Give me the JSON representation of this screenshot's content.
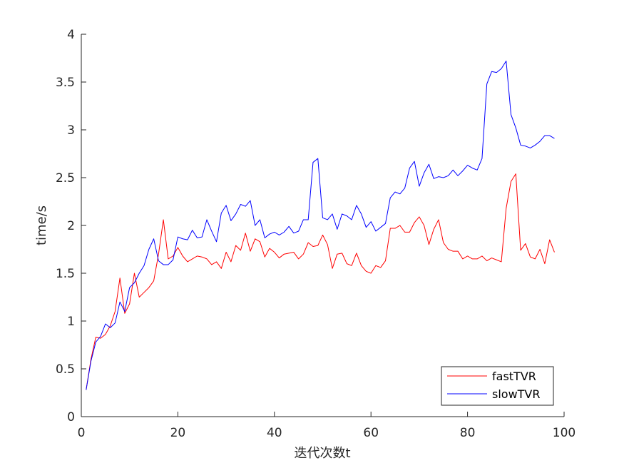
{
  "chart_data": {
    "type": "line",
    "xlabel": "迭代次数t",
    "ylabel": "time/s",
    "xlim": [
      0,
      100
    ],
    "ylim": [
      0,
      4
    ],
    "xticks": [
      0,
      20,
      40,
      60,
      80,
      100
    ],
    "yticks": [
      0,
      0.5,
      1,
      1.5,
      2,
      2.5,
      3,
      3.5,
      4
    ],
    "grid": false,
    "legend_position": "bottom-right",
    "x": [
      1,
      2,
      3,
      4,
      5,
      6,
      7,
      8,
      9,
      10,
      11,
      12,
      13,
      14,
      15,
      16,
      17,
      18,
      19,
      20,
      21,
      22,
      23,
      24,
      25,
      26,
      27,
      28,
      29,
      30,
      31,
      32,
      33,
      34,
      35,
      36,
      37,
      38,
      39,
      40,
      41,
      42,
      43,
      44,
      45,
      46,
      47,
      48,
      49,
      50,
      51,
      52,
      53,
      54,
      55,
      56,
      57,
      58,
      59,
      60,
      61,
      62,
      63,
      64,
      65,
      66,
      67,
      68,
      69,
      70,
      71,
      72,
      73,
      74,
      75,
      76,
      77,
      78,
      79,
      80,
      81,
      82,
      83,
      84,
      85,
      86,
      87,
      88,
      89,
      90,
      91,
      92,
      93,
      94,
      95,
      96,
      97,
      98
    ],
    "series": [
      {
        "name": "fastTVR",
        "color": "#ff0000",
        "values": [
          0.28,
          0.6,
          0.83,
          0.82,
          0.86,
          0.95,
          1.1,
          1.45,
          1.08,
          1.18,
          1.5,
          1.25,
          1.3,
          1.35,
          1.42,
          1.7,
          2.06,
          1.65,
          1.68,
          1.77,
          1.68,
          1.62,
          1.65,
          1.68,
          1.67,
          1.65,
          1.59,
          1.62,
          1.55,
          1.72,
          1.62,
          1.79,
          1.74,
          1.92,
          1.73,
          1.86,
          1.83,
          1.67,
          1.76,
          1.72,
          1.66,
          1.7,
          1.71,
          1.72,
          1.65,
          1.7,
          1.82,
          1.78,
          1.79,
          1.9,
          1.8,
          1.55,
          1.7,
          1.71,
          1.6,
          1.58,
          1.71,
          1.58,
          1.52,
          1.5,
          1.58,
          1.56,
          1.63,
          1.97,
          1.97,
          2.0,
          1.93,
          1.93,
          2.03,
          2.09,
          2.0,
          1.8,
          1.96,
          2.06,
          1.82,
          1.75,
          1.73,
          1.73,
          1.65,
          1.68,
          1.65,
          1.65,
          1.68,
          1.63,
          1.66,
          1.64,
          1.62,
          2.18,
          2.46,
          2.54,
          1.74,
          1.81,
          1.67,
          1.65,
          1.75,
          1.6,
          1.85,
          1.72
        ]
      },
      {
        "name": "slowTVR",
        "color": "#0000ff",
        "values": [
          0.28,
          0.58,
          0.78,
          0.84,
          0.97,
          0.93,
          0.98,
          1.2,
          1.1,
          1.35,
          1.4,
          1.5,
          1.58,
          1.75,
          1.86,
          1.63,
          1.59,
          1.59,
          1.64,
          1.88,
          1.86,
          1.85,
          1.95,
          1.87,
          1.88,
          2.06,
          1.94,
          1.83,
          2.13,
          2.21,
          2.05,
          2.12,
          2.22,
          2.2,
          2.26,
          2.0,
          2.06,
          1.87,
          1.91,
          1.93,
          1.9,
          1.93,
          1.99,
          1.92,
          1.94,
          2.06,
          2.06,
          2.66,
          2.7,
          2.08,
          2.06,
          2.12,
          1.96,
          2.12,
          2.1,
          2.06,
          2.21,
          2.12,
          1.98,
          2.04,
          1.94,
          1.98,
          2.02,
          2.29,
          2.35,
          2.33,
          2.39,
          2.6,
          2.67,
          2.41,
          2.55,
          2.64,
          2.49,
          2.51,
          2.5,
          2.52,
          2.58,
          2.52,
          2.57,
          2.63,
          2.6,
          2.58,
          2.7,
          3.48,
          3.61,
          3.6,
          3.64,
          3.72,
          3.16,
          3.02,
          2.84,
          2.83,
          2.81,
          2.84,
          2.88,
          2.94,
          2.94,
          2.91
        ]
      }
    ]
  }
}
